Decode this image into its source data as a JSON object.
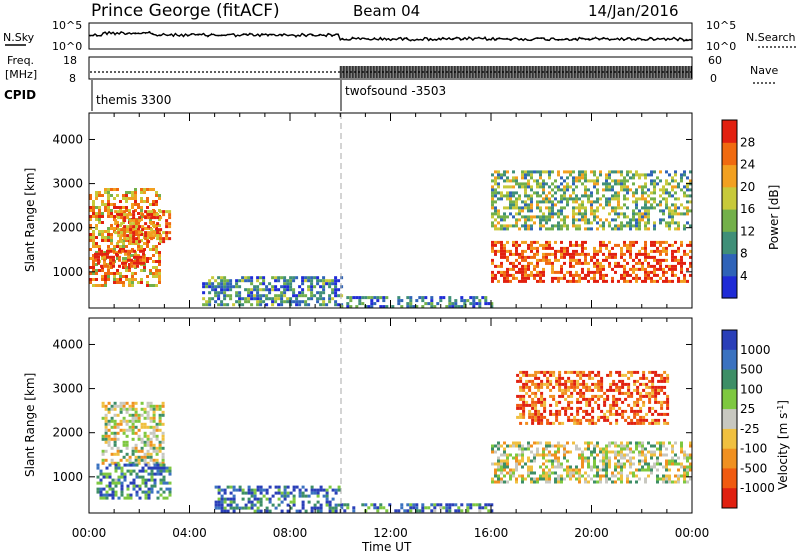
{
  "header": {
    "station": "Prince George (fitACF)",
    "beam": "Beam 04",
    "date": "14/Jan/2016"
  },
  "noise_panel": {
    "left_label": "N.Sky",
    "left_ticks": [
      "10^5",
      "10^0"
    ],
    "right_label": "N.Search",
    "right_ticks": [
      "10^5",
      "10^0"
    ]
  },
  "freq_panel": {
    "left_label_line1": "Freq.",
    "left_label_line2": "[MHz]",
    "left_ticks": [
      "18",
      "8"
    ],
    "right_label": "Nave",
    "right_ticks": [
      "60",
      "0"
    ]
  },
  "cpid": {
    "label": "CPID",
    "modes": [
      {
        "name": "themis 3300",
        "start": "00:00"
      },
      {
        "name": "twofsound -3503",
        "start": "10:00"
      }
    ]
  },
  "x_axis": {
    "label": "Time UT",
    "ticks": [
      "00:00",
      "04:00",
      "08:00",
      "12:00",
      "16:00",
      "20:00",
      "00:00"
    ]
  },
  "colors": {
    "power_scale": [
      "#1f2bd6",
      "#2f63b8",
      "#3f8f78",
      "#73b04a",
      "#c7c93a",
      "#f2a020",
      "#f06a10",
      "#e22010"
    ],
    "velocity_scale": [
      "#2a3fb8",
      "#3a72c0",
      "#3d8e66",
      "#7ec840",
      "#c8c8c0",
      "#f0c040",
      "#f09020",
      "#f05a10",
      "#e02010"
    ]
  },
  "chart_data": [
    {
      "type": "heatmap",
      "panel": "power",
      "ylabel": "Slant Range [km]",
      "xlabel": "",
      "yticks": [
        1000,
        2000,
        3000,
        4000
      ],
      "ylim": [
        180,
        4600
      ],
      "xlim_hours": [
        0,
        24
      ],
      "colorbar_label": "Power [dB]",
      "colorbar_ticks": [
        "4",
        "8",
        "12",
        "16",
        "20",
        "24",
        "28"
      ],
      "regions": [
        {
          "t0": 0.0,
          "t1": 2.8,
          "r0": 700,
          "r1": 2900,
          "level": 0.7
        },
        {
          "t0": 0.2,
          "t1": 2.2,
          "r0": 1100,
          "r1": 1500,
          "level": 0.95
        },
        {
          "t0": 1.0,
          "t1": 3.2,
          "r0": 1700,
          "r1": 2400,
          "level": 0.8
        },
        {
          "t0": 4.5,
          "t1": 10.0,
          "r0": 250,
          "r1": 900,
          "level": 0.3
        },
        {
          "t0": 10.0,
          "t1": 16.0,
          "r0": 200,
          "r1": 450,
          "level": 0.25
        },
        {
          "t0": 16.0,
          "t1": 24.0,
          "r0": 800,
          "r1": 1700,
          "level": 0.9
        },
        {
          "t0": 16.0,
          "t1": 24.0,
          "r0": 2000,
          "r1": 3300,
          "level": 0.45
        }
      ]
    },
    {
      "type": "heatmap",
      "panel": "velocity",
      "ylabel": "Slant Range [km]",
      "xlabel": "Time UT",
      "yticks": [
        1000,
        2000,
        3000,
        4000
      ],
      "ylim": [
        180,
        4600
      ],
      "xlim_hours": [
        0,
        24
      ],
      "colorbar_label": "Velocity [m s-1]",
      "colorbar_ticks": [
        "1000",
        "500",
        "100",
        "25",
        "-25",
        "-100",
        "-500",
        "-1000"
      ],
      "regions": [
        {
          "t0": 0.5,
          "t1": 3.0,
          "r0": 1300,
          "r1": 2700,
          "level": 0.5
        },
        {
          "t0": 0.3,
          "t1": 3.2,
          "r0": 500,
          "r1": 1300,
          "level": 0.2
        },
        {
          "t0": 5.0,
          "t1": 10.0,
          "r0": 250,
          "r1": 800,
          "level": 0.15
        },
        {
          "t0": 10.0,
          "t1": 16.0,
          "r0": 200,
          "r1": 400,
          "level": 0.2
        },
        {
          "t0": 16.0,
          "t1": 24.0,
          "r0": 900,
          "r1": 1800,
          "level": 0.5
        },
        {
          "t0": 17.0,
          "t1": 23.0,
          "r0": 2200,
          "r1": 3400,
          "level": 0.85
        }
      ]
    }
  ]
}
